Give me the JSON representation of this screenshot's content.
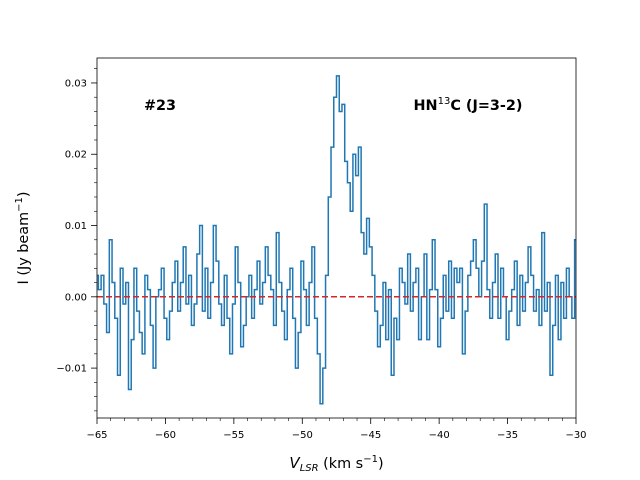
{
  "chart_data": {
    "type": "line",
    "step": "mid",
    "title": "",
    "xlabel": "V_LSR (km s^-1)",
    "ylabel": "I (Jy beam^-1)",
    "xlim": [
      -65,
      -30
    ],
    "ylim": [
      -0.017,
      0.0335
    ],
    "xticks": [
      -65,
      -60,
      -55,
      -50,
      -45,
      -40,
      -35,
      -30
    ],
    "xtick_labels": [
      "−65",
      "−60",
      "−55",
      "−50",
      "−45",
      "−40",
      "−35",
      "−30"
    ],
    "yticks": [
      -0.01,
      0.0,
      0.01,
      0.02,
      0.03
    ],
    "ytick_labels": [
      "−0.01",
      "0.00",
      "0.01",
      "0.02",
      "0.03"
    ],
    "annotations": {
      "source_id": "#23",
      "line_name": "HN",
      "line_isotope": "13",
      "line_transition": "C (J=3-2)"
    },
    "baseline": {
      "name": "zero level",
      "value": 0.0,
      "color": "#d62728",
      "style": "dashed"
    },
    "series": [
      {
        "name": "HN13C (J=3-2) spectrum",
        "color": "#1f77b4",
        "x": [
          -65.0,
          -64.8,
          -64.6,
          -64.4,
          -64.2,
          -64.0,
          -63.8,
          -63.6,
          -63.4,
          -63.2,
          -63.0,
          -62.8,
          -62.6,
          -62.4,
          -62.2,
          -62.0,
          -61.8,
          -61.6,
          -61.4,
          -61.2,
          -61.0,
          -60.8,
          -60.6,
          -60.4,
          -60.2,
          -60.0,
          -59.8,
          -59.6,
          -59.4,
          -59.2,
          -59.0,
          -58.8,
          -58.6,
          -58.4,
          -58.2,
          -58.0,
          -57.8,
          -57.6,
          -57.4,
          -57.2,
          -57.0,
          -56.8,
          -56.6,
          -56.4,
          -56.2,
          -56.0,
          -55.8,
          -55.6,
          -55.4,
          -55.2,
          -55.0,
          -54.8,
          -54.6,
          -54.4,
          -54.2,
          -54.0,
          -53.8,
          -53.6,
          -53.4,
          -53.2,
          -53.0,
          -52.8,
          -52.6,
          -52.4,
          -52.2,
          -52.0,
          -51.8,
          -51.6,
          -51.4,
          -51.2,
          -51.0,
          -50.8,
          -50.6,
          -50.4,
          -50.2,
          -50.0,
          -49.8,
          -49.6,
          -49.4,
          -49.2,
          -49.0,
          -48.8,
          -48.6,
          -48.4,
          -48.2,
          -48.0,
          -47.8,
          -47.6,
          -47.4,
          -47.2,
          -47.0,
          -46.8,
          -46.6,
          -46.4,
          -46.2,
          -46.0,
          -45.8,
          -45.6,
          -45.4,
          -45.2,
          -45.0,
          -44.8,
          -44.6,
          -44.4,
          -44.2,
          -44.0,
          -43.8,
          -43.6,
          -43.4,
          -43.2,
          -43.0,
          -42.8,
          -42.6,
          -42.4,
          -42.2,
          -42.0,
          -41.8,
          -41.6,
          -41.4,
          -41.2,
          -41.0,
          -40.8,
          -40.6,
          -40.4,
          -40.2,
          -40.0,
          -39.8,
          -39.6,
          -39.4,
          -39.2,
          -39.0,
          -38.8,
          -38.6,
          -38.4,
          -38.2,
          -38.0,
          -37.8,
          -37.6,
          -37.4,
          -37.2,
          -37.0,
          -36.8,
          -36.6,
          -36.4,
          -36.2,
          -36.0,
          -35.8,
          -35.6,
          -35.4,
          -35.2,
          -35.0,
          -34.8,
          -34.6,
          -34.4,
          -34.2,
          -34.0,
          -33.8,
          -33.6,
          -33.4,
          -33.2,
          -33.0,
          -32.8,
          -32.6,
          -32.4,
          -32.2,
          -32.0,
          -31.8,
          -31.6,
          -31.4,
          -31.2,
          -31.0,
          -30.8,
          -30.6,
          -30.4,
          -30.2,
          -30.0
        ],
        "values": [
          0.003,
          0.001,
          0.003,
          -0.001,
          -0.005,
          0.008,
          0.002,
          -0.003,
          -0.011,
          0.004,
          -0.001,
          0.002,
          -0.013,
          -0.006,
          0.004,
          -0.002,
          -0.005,
          -0.008,
          0.003,
          0.001,
          -0.004,
          -0.01,
          0.0,
          0.001,
          0.004,
          -0.003,
          -0.006,
          -0.002,
          0.002,
          0.005,
          -0.002,
          0.002,
          0.007,
          -0.001,
          0.003,
          -0.004,
          -0.001,
          0.006,
          0.01,
          -0.002,
          0.004,
          -0.003,
          0.002,
          0.01,
          0.005,
          -0.001,
          -0.004,
          0.003,
          -0.003,
          -0.008,
          -0.001,
          0.007,
          0.002,
          -0.007,
          -0.004,
          0.0,
          0.003,
          -0.003,
          0.001,
          0.005,
          -0.001,
          0.002,
          0.007,
          0.003,
          0.001,
          -0.004,
          0.009,
          0.002,
          -0.002,
          -0.006,
          0.001,
          0.004,
          -0.003,
          -0.01,
          -0.005,
          0.005,
          0.001,
          -0.004,
          0.002,
          0.007,
          -0.003,
          -0.008,
          -0.015,
          -0.01,
          0.003,
          0.014,
          0.021,
          0.028,
          0.031,
          0.026,
          0.027,
          0.019,
          0.016,
          0.012,
          0.02,
          0.017,
          0.021,
          0.009,
          0.006,
          0.011,
          0.007,
          0.003,
          -0.002,
          -0.007,
          -0.004,
          0.002,
          -0.006,
          0.001,
          -0.011,
          -0.003,
          -0.006,
          0.004,
          0.002,
          -0.001,
          0.006,
          -0.002,
          0.002,
          0.004,
          -0.006,
          0.0,
          0.006,
          -0.006,
          0.001,
          0.008,
          0.001,
          -0.007,
          -0.003,
          0.003,
          -0.002,
          0.005,
          -0.003,
          0.004,
          0.002,
          0.004,
          -0.008,
          -0.002,
          0.003,
          0.005,
          0.008,
          0.004,
          0.0,
          0.005,
          0.013,
          0.001,
          -0.003,
          0.002,
          0.006,
          -0.003,
          0.004,
          0.0,
          -0.006,
          -0.002,
          0.001,
          0.005,
          -0.004,
          0.003,
          -0.002,
          0.002,
          0.007,
          0.003,
          -0.002,
          0.001,
          -0.004,
          0.009,
          -0.002,
          0.002,
          -0.011,
          -0.004,
          0.003,
          -0.006,
          0.002,
          -0.003,
          0.004,
          0.0,
          -0.003,
          0.008
        ]
      }
    ]
  }
}
